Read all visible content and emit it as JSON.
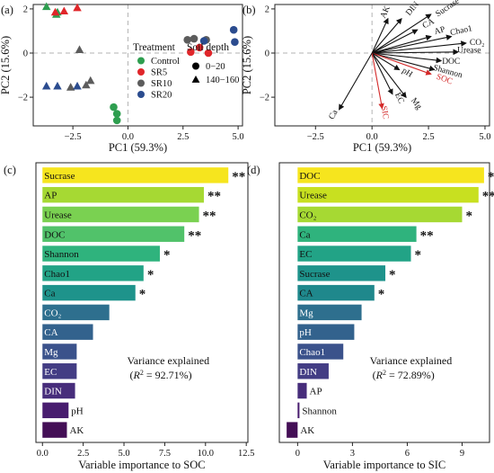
{
  "chart_data": [
    {
      "type": "scatter",
      "panel_label": "(a)",
      "xlabel": "PC1 (59.3%)",
      "ylabel": "PC2 (15.6%)",
      "xlim": [
        -4.3,
        5.2
      ],
      "ylim": [
        -3.3,
        2.2
      ],
      "xticks": [
        -2.5,
        0.0,
        2.5,
        5.0
      ],
      "yticks": [
        -2,
        0,
        2
      ],
      "tick_labels": {
        "x": [
          "−2.5",
          "0.0",
          "2.5",
          "5.0"
        ],
        "y": [
          "−2",
          "0",
          "2"
        ]
      },
      "legend": {
        "treatment_title": "Treatment",
        "depth_title": "Soil depth",
        "treatments": [
          {
            "name": "Control",
            "color": "#2e9e4f"
          },
          {
            "name": "SR5",
            "color": "#e0262a"
          },
          {
            "name": "SR10",
            "color": "#5c5c5c"
          },
          {
            "name": "SR20",
            "color": "#2b4c8f"
          }
        ],
        "depths": [
          {
            "name": "0−20",
            "shape": "circle"
          },
          {
            "name": "140−160",
            "shape": "triangle"
          }
        ]
      },
      "series": [
        {
          "name": "Control",
          "color": "#2e9e4f",
          "shape": "triangle",
          "x": [
            -3.7,
            -3.2,
            -3.25
          ],
          "y": [
            2.1,
            1.85,
            1.75
          ]
        },
        {
          "name": "Control",
          "color": "#2e9e4f",
          "shape": "circle",
          "x": [
            -0.65,
            -0.5,
            -0.5
          ],
          "y": [
            -2.45,
            -2.75,
            -3.05
          ]
        },
        {
          "name": "SR5",
          "color": "#e0262a",
          "shape": "triangle",
          "x": [
            -3.3,
            -2.9,
            -2.3
          ],
          "y": [
            1.85,
            1.9,
            2.05
          ]
        },
        {
          "name": "SR5",
          "color": "#e0262a",
          "shape": "circle",
          "x": [
            2.85,
            3.25,
            3.65
          ],
          "y": [
            0.05,
            0.25,
            0.0
          ]
        },
        {
          "name": "SR10",
          "color": "#5c5c5c",
          "shape": "triangle",
          "x": [
            -2.2,
            -1.7,
            -2.6,
            -1.9
          ],
          "y": [
            0.15,
            -1.25,
            -1.55,
            -1.45
          ]
        },
        {
          "name": "SR10",
          "color": "#5c5c5c",
          "shape": "circle",
          "x": [
            2.7,
            3.0,
            3.55
          ],
          "y": [
            0.6,
            0.65,
            0.6
          ]
        },
        {
          "name": "SR20",
          "color": "#2b4c8f",
          "shape": "triangle",
          "x": [
            -3.7,
            -3.2,
            -2.3
          ],
          "y": [
            -1.5,
            -1.5,
            -1.5
          ]
        },
        {
          "name": "SR20",
          "color": "#2b4c8f",
          "shape": "circle",
          "x": [
            3.45,
            4.85,
            4.8
          ],
          "y": [
            0.55,
            0.5,
            1.05
          ]
        }
      ]
    },
    {
      "type": "biplot",
      "panel_label": "(b)",
      "xlabel": "PC1 (59.3%)",
      "ylabel": "PC2 (15.6%)",
      "xlim": [
        -4.3,
        5.2
      ],
      "ylim": [
        -3.3,
        2.2
      ],
      "xticks": [
        -2.5,
        0.0,
        2.5,
        5.0
      ],
      "yticks": [
        -2,
        0,
        2
      ],
      "tick_labels": {
        "x": [
          "−2.5",
          "0.0",
          "2.5",
          "5.0"
        ],
        "y": [
          "−2",
          "0",
          "2"
        ]
      },
      "loadings": [
        {
          "name": "AK",
          "x": 0.7,
          "y": 1.55,
          "color": "#111111",
          "lx": 0.6,
          "ly": 1.85
        },
        {
          "name": "DIN",
          "x": 1.3,
          "y": 1.55,
          "color": "#111111",
          "lx": 1.8,
          "ly": 2.0
        },
        {
          "name": "Sucrase",
          "x": 2.6,
          "y": 1.75,
          "color": "#111111",
          "lx": 3.35,
          "ly": 2.05
        },
        {
          "name": "CA",
          "x": 2.0,
          "y": 1.05,
          "color": "#111111",
          "lx": 2.5,
          "ly": 1.32
        },
        {
          "name": "AP",
          "x": 2.6,
          "y": 0.75,
          "color": "#111111",
          "lx": 3.0,
          "ly": 1.0
        },
        {
          "name": "Chao1",
          "x": 3.5,
          "y": 0.75,
          "color": "#111111",
          "lx": 3.95,
          "ly": 1.0
        },
        {
          "name": "CO₂",
          "x": 4.15,
          "y": 0.45,
          "color": "#111111",
          "lx": 4.65,
          "ly": 0.45
        },
        {
          "name": "Urease",
          "x": 3.8,
          "y": 0.05,
          "color": "#111111",
          "lx": 4.3,
          "ly": 0.1
        },
        {
          "name": "DOC",
          "x": 3.05,
          "y": -0.35,
          "color": "#111111",
          "lx": 3.5,
          "ly": -0.4
        },
        {
          "name": "Shannon",
          "x": 2.75,
          "y": -0.75,
          "color": "#111111",
          "lx": 3.35,
          "ly": -0.85
        },
        {
          "name": "SOC",
          "x": 2.6,
          "y": -0.95,
          "color": "#d42a2a",
          "lx": 3.2,
          "ly": -1.2
        },
        {
          "name": "pH",
          "x": 1.2,
          "y": -0.75,
          "color": "#111111",
          "lx": 1.55,
          "ly": -0.9
        },
        {
          "name": "Mg",
          "x": 1.5,
          "y": -2.0,
          "color": "#111111",
          "lx": 1.95,
          "ly": -2.3
        },
        {
          "name": "EC",
          "x": 0.9,
          "y": -1.85,
          "color": "#111111",
          "lx": 1.2,
          "ly": -2.05
        },
        {
          "name": "SIC",
          "x": 0.45,
          "y": -2.5,
          "color": "#d42a2a",
          "lx": 0.55,
          "ly": -2.7
        },
        {
          "name": "Ca",
          "x": -1.45,
          "y": -2.55,
          "color": "#111111",
          "lx": -1.7,
          "ly": -2.8
        }
      ]
    },
    {
      "type": "bar",
      "orientation": "horizontal",
      "panel_label": "(c)",
      "xlabel": "Variable importance to SOC",
      "xlim": [
        -0.4,
        12.6
      ],
      "xticks": [
        0.0,
        2.5,
        5.0,
        7.5,
        10.0,
        12.5
      ],
      "tick_labels": [
        "0.0",
        "2.5",
        "5.0",
        "7.5",
        "10.0",
        "12.5"
      ],
      "categories": [
        "Sucrase",
        "AP",
        "Urease",
        "DOC",
        "Shannon",
        "Chao1",
        "Ca",
        "CO₂",
        "CA",
        "Mg",
        "EC",
        "DIN",
        "pH",
        "AK"
      ],
      "values": [
        11.4,
        9.9,
        9.6,
        8.7,
        7.2,
        6.2,
        5.7,
        4.1,
        3.1,
        2.1,
        2.1,
        2.0,
        1.6,
        1.5
      ],
      "significance": [
        "**",
        "**",
        "**",
        "**",
        "*",
        "*",
        "*",
        "",
        "",
        "",
        "",
        "",
        "",
        ""
      ],
      "colors": [
        "#f6e51e",
        "#a6d933",
        "#7ad151",
        "#51c26a",
        "#2fb37d",
        "#22a386",
        "#1e938b",
        "#2e6f8e",
        "#33628d",
        "#3b528b",
        "#433d84",
        "#472d7b",
        "#481d6f",
        "#440f56"
      ],
      "annotation": {
        "line1": "Variance explained",
        "line2_prefix": "(",
        "r2_symbol": "R",
        "r2_exp": "2",
        "line2_suffix": " = 92.71%)"
      }
    },
    {
      "type": "bar",
      "orientation": "horizontal",
      "panel_label": "(d)",
      "xlabel": "Variable importance to SIC",
      "xlim": [
        -1.0,
        10.5
      ],
      "xticks": [
        0,
        3,
        6,
        9
      ],
      "tick_labels": [
        "0",
        "3",
        "6",
        "9"
      ],
      "categories": [
        "DOC",
        "Urease",
        "CO₂",
        "Ca",
        "EC",
        "Sucrase",
        "CA",
        "Mg",
        "pH",
        "Chao1",
        "DIN",
        "AP",
        "Shannon",
        "AK"
      ],
      "values": [
        10.2,
        9.9,
        9.0,
        6.5,
        6.2,
        4.8,
        4.2,
        3.5,
        3.1,
        2.5,
        1.7,
        0.5,
        0.1,
        -0.6
      ],
      "significance": [
        "**",
        "**",
        "*",
        "**",
        "*",
        "*",
        "*",
        "",
        "",
        "",
        "",
        "",
        "",
        ""
      ],
      "colors": [
        "#f6e51e",
        "#c8e020",
        "#a6d933",
        "#2fb37d",
        "#22a386",
        "#1e938b",
        "#1f888c",
        "#2e6f8e",
        "#33628d",
        "#3b528b",
        "#433d84",
        "#472d7b",
        "#481d6f",
        "#440f56"
      ],
      "annotation": {
        "line1": "Variance explained",
        "line2_prefix": "(",
        "r2_symbol": "R",
        "r2_exp": "2",
        "line2_suffix": " = 72.89%)"
      }
    }
  ]
}
